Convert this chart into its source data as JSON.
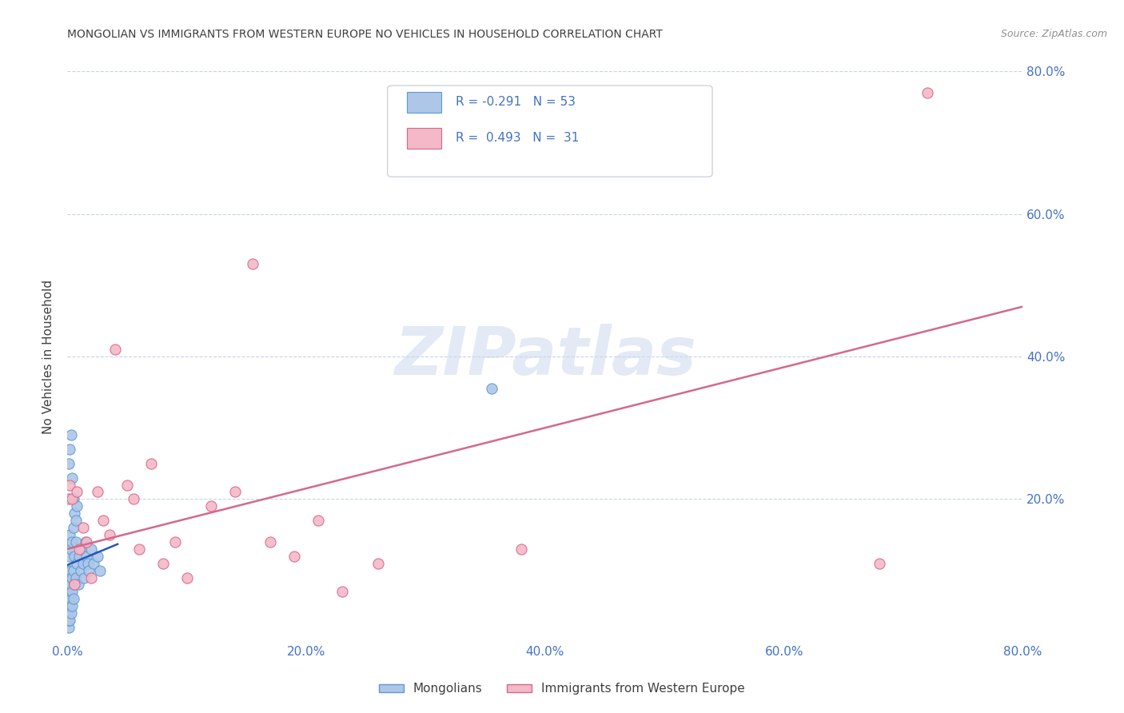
{
  "title": "MONGOLIAN VS IMMIGRANTS FROM WESTERN EUROPE NO VEHICLES IN HOUSEHOLD CORRELATION CHART",
  "source": "Source: ZipAtlas.com",
  "ylabel": "No Vehicles in Household",
  "watermark": "ZIPatlas",
  "mongolian_R": -0.291,
  "mongolian_N": 53,
  "western_europe_R": 0.493,
  "western_europe_N": 31,
  "xlim": [
    0.0,
    0.8
  ],
  "ylim": [
    0.0,
    0.8
  ],
  "xticks": [
    0.0,
    0.2,
    0.4,
    0.6,
    0.8
  ],
  "yticks": [
    0.2,
    0.4,
    0.6,
    0.8
  ],
  "xticklabels": [
    "0.0%",
    "20.0%",
    "40.0%",
    "60.0%",
    "80.0%"
  ],
  "ytick_right_labels": [
    "20.0%",
    "40.0%",
    "60.0%",
    "80.0%"
  ],
  "mongolian_color": "#aec6e8",
  "mongolian_edge_color": "#5b9bd5",
  "western_europe_color": "#f4b8c8",
  "western_europe_edge_color": "#d4698a",
  "mongolian_line_color": "#2458b5",
  "western_europe_line_color": "#d4698a",
  "grid_color": "#c8d4e8",
  "background_color": "#ffffff",
  "title_color": "#404040",
  "axis_tick_color": "#4472c4",
  "legend_R_color": "#4472c4",
  "legend_N_color": "#4472c4",
  "mongolian_x": [
    0.001,
    0.001,
    0.001,
    0.001,
    0.001,
    0.001,
    0.001,
    0.002,
    0.002,
    0.002,
    0.002,
    0.002,
    0.002,
    0.003,
    0.003,
    0.003,
    0.003,
    0.003,
    0.004,
    0.004,
    0.004,
    0.004,
    0.005,
    0.005,
    0.005,
    0.006,
    0.006,
    0.007,
    0.007,
    0.008,
    0.009,
    0.01,
    0.011,
    0.012,
    0.013,
    0.014,
    0.015,
    0.016,
    0.017,
    0.018,
    0.02,
    0.022,
    0.025,
    0.027,
    0.001,
    0.002,
    0.003,
    0.004,
    0.005,
    0.006,
    0.007,
    0.008,
    0.355
  ],
  "mongolian_y": [
    0.02,
    0.03,
    0.04,
    0.05,
    0.06,
    0.08,
    0.1,
    0.03,
    0.05,
    0.07,
    0.09,
    0.12,
    0.15,
    0.04,
    0.06,
    0.08,
    0.1,
    0.13,
    0.05,
    0.07,
    0.09,
    0.14,
    0.06,
    0.1,
    0.16,
    0.08,
    0.12,
    0.09,
    0.14,
    0.11,
    0.08,
    0.12,
    0.1,
    0.13,
    0.11,
    0.09,
    0.14,
    0.12,
    0.11,
    0.1,
    0.13,
    0.11,
    0.12,
    0.1,
    0.25,
    0.27,
    0.29,
    0.23,
    0.2,
    0.18,
    0.17,
    0.19,
    0.355
  ],
  "western_europe_x": [
    0.001,
    0.002,
    0.004,
    0.006,
    0.008,
    0.01,
    0.013,
    0.016,
    0.02,
    0.025,
    0.03,
    0.035,
    0.04,
    0.05,
    0.055,
    0.06,
    0.07,
    0.08,
    0.09,
    0.1,
    0.12,
    0.14,
    0.155,
    0.17,
    0.19,
    0.21,
    0.23,
    0.26,
    0.38,
    0.68,
    0.72
  ],
  "western_europe_y": [
    0.2,
    0.22,
    0.2,
    0.08,
    0.21,
    0.13,
    0.16,
    0.14,
    0.09,
    0.21,
    0.17,
    0.15,
    0.41,
    0.22,
    0.2,
    0.13,
    0.25,
    0.11,
    0.14,
    0.09,
    0.19,
    0.21,
    0.53,
    0.14,
    0.12,
    0.17,
    0.07,
    0.11,
    0.13,
    0.11,
    0.77
  ],
  "mon_line_x0": 0.0,
  "mon_line_x1": 0.042,
  "we_line_x0": 0.0,
  "we_line_x1": 0.8,
  "we_line_y0": 0.13,
  "we_line_y1": 0.47
}
